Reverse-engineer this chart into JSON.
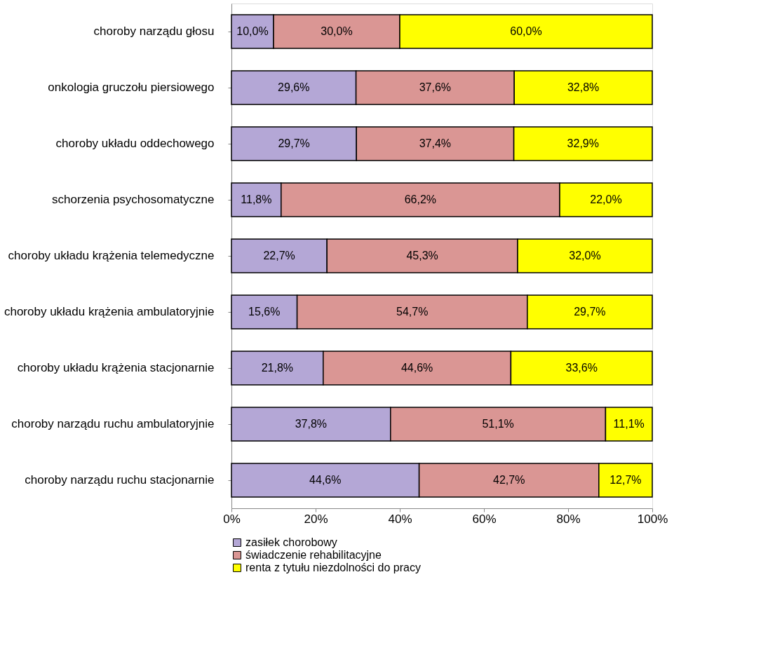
{
  "chart_data": {
    "type": "bar",
    "orientation": "horizontal",
    "stacked": true,
    "categories": [
      "choroby narządu głosu",
      "onkologia gruczołu piersiowego",
      "choroby układu oddechowego",
      "schorzenia psychosomatyczne",
      "choroby układu krążenia telemedyczne",
      "choroby układu krążenia ambulatoryjnie",
      "choroby układu krążenia stacjonarnie",
      "choroby narządu ruchu ambulatoryjnie",
      "choroby narządu ruchu stacjonarnie"
    ],
    "series": [
      {
        "name": "zasiłek chorobowy",
        "color": "#b4a7d6",
        "values": [
          10.0,
          29.6,
          29.7,
          11.8,
          22.7,
          15.6,
          21.8,
          37.8,
          44.6
        ],
        "value_labels": [
          "10,0%",
          "29,6%",
          "29,7%",
          "11,8%",
          "22,7%",
          "15,6%",
          "21,8%",
          "37,8%",
          "44,6%"
        ]
      },
      {
        "name": "świadczenie rehabilitacyjne",
        "color": "#da9694",
        "values": [
          30.0,
          37.6,
          37.4,
          66.2,
          45.3,
          54.7,
          44.6,
          51.1,
          42.7
        ],
        "value_labels": [
          "30,0%",
          "37,6%",
          "37,4%",
          "66,2%",
          "45,3%",
          "54,7%",
          "44,6%",
          "51,1%",
          "42,7%"
        ]
      },
      {
        "name": "renta z tytułu niezdolności do pracy",
        "color": "#ffff00",
        "values": [
          60.0,
          32.8,
          32.9,
          22.0,
          32.0,
          29.7,
          33.6,
          11.1,
          12.7
        ],
        "value_labels": [
          "60,0%",
          "32,8%",
          "32,9%",
          "22,0%",
          "32,0%",
          "29,7%",
          "33,6%",
          "11,1%",
          "12,7%"
        ]
      }
    ],
    "xlim": [
      0,
      100
    ],
    "xticks": [
      {
        "value": 0,
        "label": "0%"
      },
      {
        "value": 20,
        "label": "20%"
      },
      {
        "value": 40,
        "label": "40%"
      },
      {
        "value": 60,
        "label": "60%"
      },
      {
        "value": 80,
        "label": "80%"
      },
      {
        "value": 100,
        "label": "100%"
      }
    ],
    "grid": false,
    "legend": "bottom"
  }
}
